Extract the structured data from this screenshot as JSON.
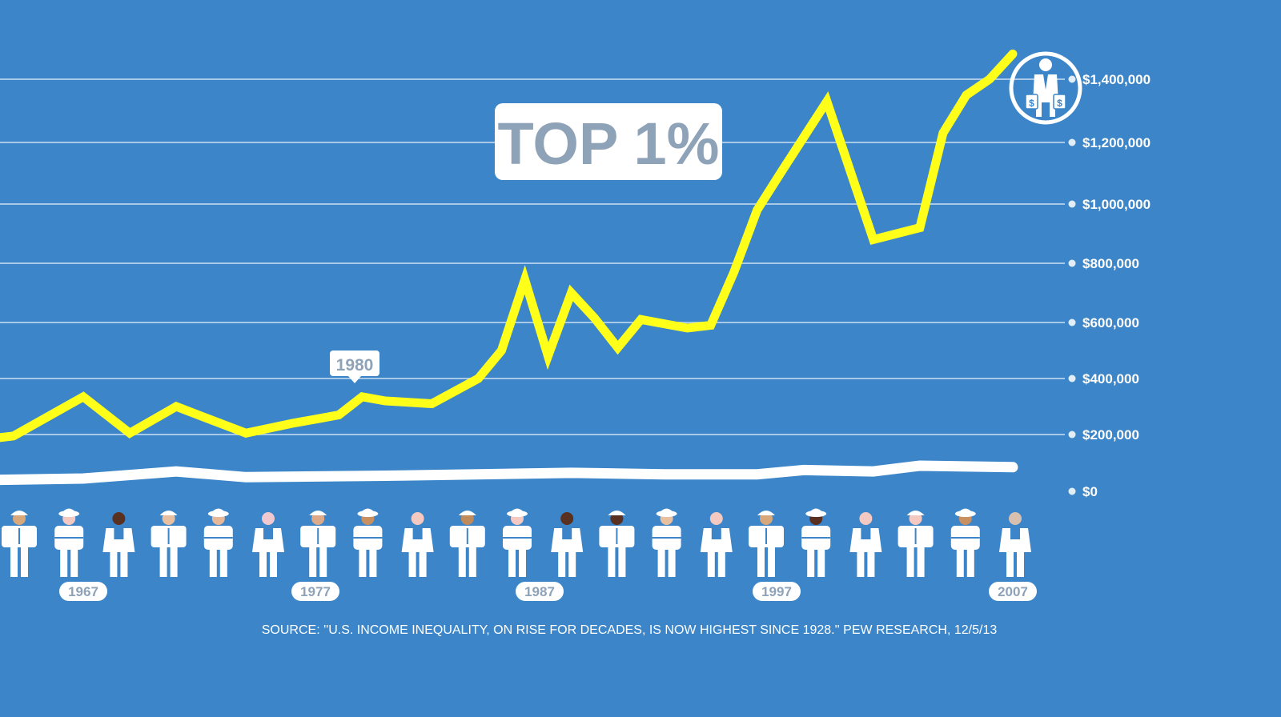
{
  "chart_data": {
    "type": "line",
    "title": "TOP 1%",
    "callout": "1980",
    "source": "SOURCE: ''U.S. INCOME INEQUALITY, ON RISE FOR DECADES, IS NOW HIGHEST SINCE 1928.'' PEW RESEARCH, 12/5/13",
    "y_ticks": [
      "$0",
      "$200,000",
      "$400,000",
      "$600,000",
      "$800,000",
      "$1,000,000",
      "$1,200,000",
      "$1,400,000"
    ],
    "x_ticks": [
      "1967",
      "1977",
      "1987",
      "1997",
      "2007"
    ],
    "ylim": [
      0,
      1400000
    ],
    "grid": true,
    "series": [
      {
        "key": "top1",
        "color": "#ffff1a",
        "x": [
          1963,
          1964,
          1967,
          1969,
          1971,
          1974,
          1976,
          1977,
          1978,
          1979,
          1980,
          1982,
          1984,
          1985,
          1986,
          1987,
          1988,
          1989,
          1990,
          1991,
          1993,
          1994,
          1995,
          1996,
          1997,
          1999,
          2001,
          2003,
          2004,
          2005,
          2006,
          2007
        ],
        "values": [
          185000,
          195000,
          335000,
          205000,
          300000,
          205000,
          240000,
          255000,
          270000,
          335000,
          320000,
          310000,
          400000,
          500000,
          745000,
          480000,
          700000,
          615000,
          510000,
          610000,
          580000,
          590000,
          770000,
          980000,
          1100000,
          1330000,
          880000,
          920000,
          1230000,
          1350000,
          1400000,
          1480000
        ]
      },
      {
        "key": "bottom",
        "color": "#ffffff",
        "x": [
          1963,
          1967,
          1971,
          1974,
          1980,
          1988,
          1992,
          1996,
          1998,
          2001,
          2003,
          2007
        ],
        "values": [
          40000,
          45000,
          70000,
          50000,
          55000,
          65000,
          60000,
          60000,
          75000,
          70000,
          90000,
          85000
        ]
      }
    ],
    "people_count": 21,
    "colors": {
      "background": "#3b85c8",
      "top_line": "#ffff1a",
      "bottom_line": "#ffffff",
      "title_text": "#8fa3b8",
      "grid": "#a8c8e8"
    }
  }
}
